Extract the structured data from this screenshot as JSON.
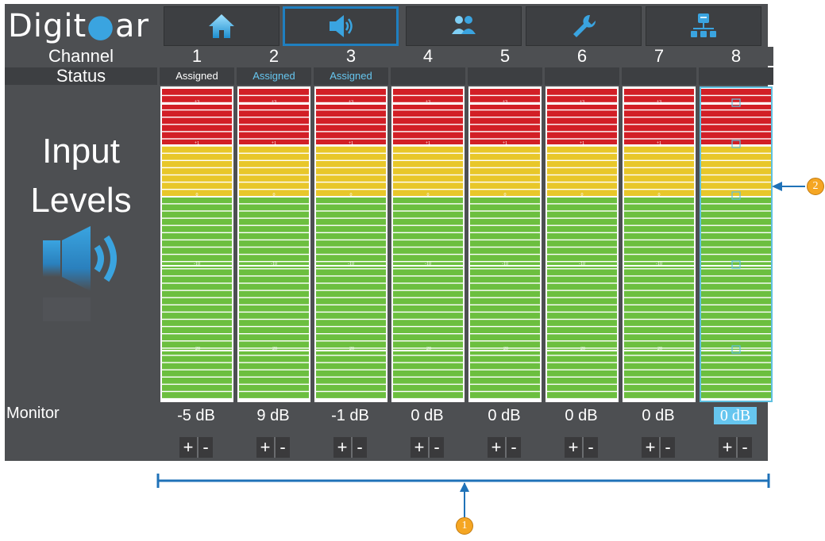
{
  "logo": {
    "text": "Digitear"
  },
  "nav": {
    "items": [
      {
        "name": "home-icon"
      },
      {
        "name": "speaker-icon",
        "active": true
      },
      {
        "name": "users-icon"
      },
      {
        "name": "wrench-icon"
      },
      {
        "name": "network-icon"
      }
    ]
  },
  "header": {
    "channel_label": "Channel",
    "status_label": "Status"
  },
  "channels": [
    {
      "number": "1",
      "status": "Assigned",
      "status_color": "#ffffff",
      "monitor": "-5 dB"
    },
    {
      "number": "2",
      "status": "Assigned",
      "status_color": "#66c6ef",
      "monitor": "9 dB"
    },
    {
      "number": "3",
      "status": "Assigned",
      "status_color": "#66c6ef",
      "monitor": "-1 dB"
    },
    {
      "number": "4",
      "status": "",
      "status_color": "#ffffff",
      "monitor": "0 dB"
    },
    {
      "number": "5",
      "status": "",
      "status_color": "#ffffff",
      "monitor": "0 dB"
    },
    {
      "number": "6",
      "status": "",
      "status_color": "#ffffff",
      "monitor": "0 dB"
    },
    {
      "number": "7",
      "status": "",
      "status_color": "#ffffff",
      "monitor": "0 dB"
    },
    {
      "number": "8",
      "status": "",
      "status_color": "#ffffff",
      "monitor": "0 dB",
      "selected": true
    }
  ],
  "meter": {
    "marks": [
      "+3",
      "+1",
      "0",
      "-10",
      "-20"
    ],
    "colors": {
      "red": "#d21f26",
      "yellow": "#e8c72a",
      "green": "#6cbf3f"
    }
  },
  "left_panel": {
    "line1": "Input",
    "line2": "Levels"
  },
  "monitor": {
    "label": "Monitor",
    "plus": "+",
    "minus": "-"
  },
  "callouts": {
    "one": "1",
    "two": "2"
  }
}
